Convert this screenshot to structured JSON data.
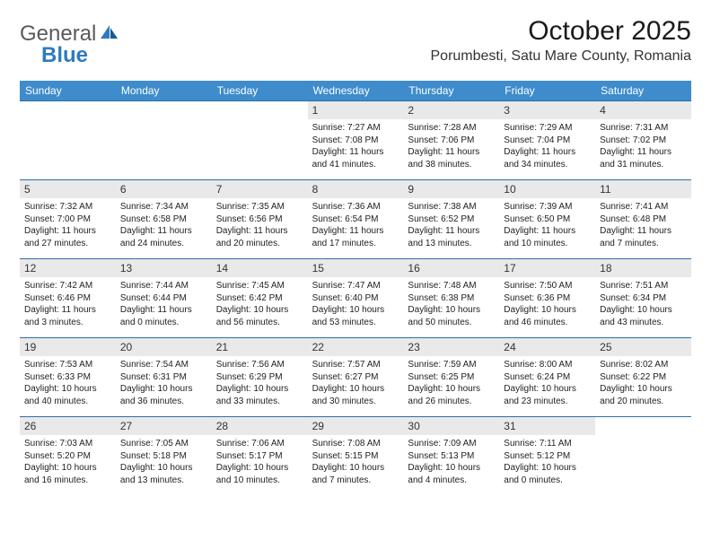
{
  "logo": {
    "general": "General",
    "blue": "Blue"
  },
  "title": "October 2025",
  "location": "Porumbesti, Satu Mare County, Romania",
  "colors": {
    "header_bg": "#3e8ccc",
    "border": "#2f6da8",
    "daynum_bg": "#e9e9e9",
    "logo_blue": "#2f7bbf",
    "logo_gray": "#5a5a5a"
  },
  "weekdays": [
    "Sunday",
    "Monday",
    "Tuesday",
    "Wednesday",
    "Thursday",
    "Friday",
    "Saturday"
  ],
  "leading_empty": 3,
  "days": [
    {
      "n": "1",
      "sr": "7:27 AM",
      "ss": "7:08 PM",
      "dh": "11",
      "dm": "41"
    },
    {
      "n": "2",
      "sr": "7:28 AM",
      "ss": "7:06 PM",
      "dh": "11",
      "dm": "38"
    },
    {
      "n": "3",
      "sr": "7:29 AM",
      "ss": "7:04 PM",
      "dh": "11",
      "dm": "34"
    },
    {
      "n": "4",
      "sr": "7:31 AM",
      "ss": "7:02 PM",
      "dh": "11",
      "dm": "31"
    },
    {
      "n": "5",
      "sr": "7:32 AM",
      "ss": "7:00 PM",
      "dh": "11",
      "dm": "27"
    },
    {
      "n": "6",
      "sr": "7:34 AM",
      "ss": "6:58 PM",
      "dh": "11",
      "dm": "24"
    },
    {
      "n": "7",
      "sr": "7:35 AM",
      "ss": "6:56 PM",
      "dh": "11",
      "dm": "20"
    },
    {
      "n": "8",
      "sr": "7:36 AM",
      "ss": "6:54 PM",
      "dh": "11",
      "dm": "17"
    },
    {
      "n": "9",
      "sr": "7:38 AM",
      "ss": "6:52 PM",
      "dh": "11",
      "dm": "13"
    },
    {
      "n": "10",
      "sr": "7:39 AM",
      "ss": "6:50 PM",
      "dh": "11",
      "dm": "10"
    },
    {
      "n": "11",
      "sr": "7:41 AM",
      "ss": "6:48 PM",
      "dh": "11",
      "dm": "7"
    },
    {
      "n": "12",
      "sr": "7:42 AM",
      "ss": "6:46 PM",
      "dh": "11",
      "dm": "3"
    },
    {
      "n": "13",
      "sr": "7:44 AM",
      "ss": "6:44 PM",
      "dh": "11",
      "dm": "0"
    },
    {
      "n": "14",
      "sr": "7:45 AM",
      "ss": "6:42 PM",
      "dh": "10",
      "dm": "56"
    },
    {
      "n": "15",
      "sr": "7:47 AM",
      "ss": "6:40 PM",
      "dh": "10",
      "dm": "53"
    },
    {
      "n": "16",
      "sr": "7:48 AM",
      "ss": "6:38 PM",
      "dh": "10",
      "dm": "50"
    },
    {
      "n": "17",
      "sr": "7:50 AM",
      "ss": "6:36 PM",
      "dh": "10",
      "dm": "46"
    },
    {
      "n": "18",
      "sr": "7:51 AM",
      "ss": "6:34 PM",
      "dh": "10",
      "dm": "43"
    },
    {
      "n": "19",
      "sr": "7:53 AM",
      "ss": "6:33 PM",
      "dh": "10",
      "dm": "40"
    },
    {
      "n": "20",
      "sr": "7:54 AM",
      "ss": "6:31 PM",
      "dh": "10",
      "dm": "36"
    },
    {
      "n": "21",
      "sr": "7:56 AM",
      "ss": "6:29 PM",
      "dh": "10",
      "dm": "33"
    },
    {
      "n": "22",
      "sr": "7:57 AM",
      "ss": "6:27 PM",
      "dh": "10",
      "dm": "30"
    },
    {
      "n": "23",
      "sr": "7:59 AM",
      "ss": "6:25 PM",
      "dh": "10",
      "dm": "26"
    },
    {
      "n": "24",
      "sr": "8:00 AM",
      "ss": "6:24 PM",
      "dh": "10",
      "dm": "23"
    },
    {
      "n": "25",
      "sr": "8:02 AM",
      "ss": "6:22 PM",
      "dh": "10",
      "dm": "20"
    },
    {
      "n": "26",
      "sr": "7:03 AM",
      "ss": "5:20 PM",
      "dh": "10",
      "dm": "16"
    },
    {
      "n": "27",
      "sr": "7:05 AM",
      "ss": "5:18 PM",
      "dh": "10",
      "dm": "13"
    },
    {
      "n": "28",
      "sr": "7:06 AM",
      "ss": "5:17 PM",
      "dh": "10",
      "dm": "10"
    },
    {
      "n": "29",
      "sr": "7:08 AM",
      "ss": "5:15 PM",
      "dh": "10",
      "dm": "7"
    },
    {
      "n": "30",
      "sr": "7:09 AM",
      "ss": "5:13 PM",
      "dh": "10",
      "dm": "4"
    },
    {
      "n": "31",
      "sr": "7:11 AM",
      "ss": "5:12 PM",
      "dh": "10",
      "dm": "0"
    }
  ],
  "labels": {
    "sunrise": "Sunrise: ",
    "sunset": "Sunset: ",
    "daylight_pre": "Daylight: ",
    "daylight_mid": " hours and ",
    "daylight_post": " minutes."
  }
}
